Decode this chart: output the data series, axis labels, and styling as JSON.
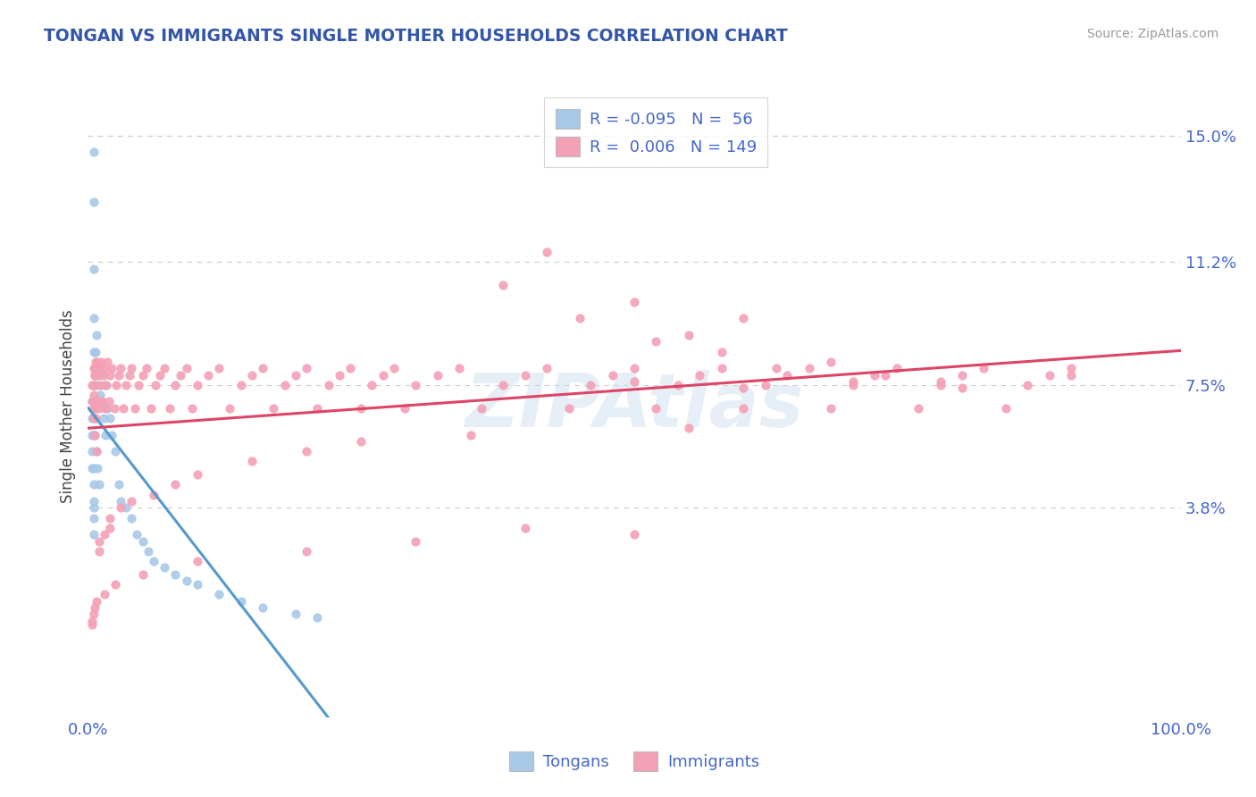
{
  "title": "TONGAN VS IMMIGRANTS SINGLE MOTHER HOUSEHOLDS CORRELATION CHART",
  "source": "Source: ZipAtlas.com",
  "ylabel": "Single Mother Households",
  "color_tongan": "#a8c8e8",
  "color_immigrant": "#f4a0b5",
  "color_tongan_line": "#5599cc",
  "color_immigrant_line": "#dd4466",
  "color_dashed": "#aaaaaa",
  "color_grid": "#cccccc",
  "color_title": "#3355aa",
  "color_axis_labels": "#4466cc",
  "color_source": "#999999",
  "xlim": [
    0.0,
    1.0
  ],
  "ylim": [
    -0.025,
    0.162
  ],
  "yticks": [
    0.038,
    0.075,
    0.112,
    0.15
  ],
  "ytick_labels": [
    "3.8%",
    "7.5%",
    "11.2%",
    "15.0%"
  ],
  "xtick_positions": [
    0.0,
    1.0
  ],
  "xtick_labels": [
    "0.0%",
    "100.0%"
  ],
  "R_tongan": -0.095,
  "N_tongan": 56,
  "R_immigrant": 0.006,
  "N_immigrant": 149,
  "tongan_x": [
    0.004,
    0.004,
    0.004,
    0.004,
    0.004,
    0.005,
    0.005,
    0.005,
    0.005,
    0.005,
    0.006,
    0.006,
    0.006,
    0.007,
    0.007,
    0.008,
    0.008,
    0.009,
    0.009,
    0.01,
    0.01,
    0.011,
    0.012,
    0.013,
    0.014,
    0.015,
    0.016,
    0.018,
    0.02,
    0.022,
    0.025,
    0.028,
    0.03,
    0.035,
    0.04,
    0.045,
    0.05,
    0.055,
    0.06,
    0.07,
    0.08,
    0.09,
    0.1,
    0.12,
    0.14,
    0.16,
    0.19,
    0.21,
    0.005,
    0.005,
    0.005,
    0.005,
    0.005,
    0.005,
    0.005,
    0.005
  ],
  "tongan_y": [
    0.07,
    0.065,
    0.06,
    0.055,
    0.05,
    0.145,
    0.13,
    0.11,
    0.095,
    0.085,
    0.08,
    0.07,
    0.06,
    0.085,
    0.068,
    0.09,
    0.055,
    0.075,
    0.05,
    0.08,
    0.045,
    0.072,
    0.078,
    0.07,
    0.065,
    0.075,
    0.06,
    0.068,
    0.065,
    0.06,
    0.055,
    0.045,
    0.04,
    0.038,
    0.035,
    0.03,
    0.028,
    0.025,
    0.022,
    0.02,
    0.018,
    0.016,
    0.015,
    0.012,
    0.01,
    0.008,
    0.006,
    0.005,
    0.04,
    0.035,
    0.03,
    0.045,
    0.038,
    0.075,
    0.06,
    0.05
  ],
  "immigrant_x": [
    0.004,
    0.004,
    0.005,
    0.005,
    0.005,
    0.006,
    0.006,
    0.007,
    0.007,
    0.008,
    0.008,
    0.009,
    0.01,
    0.01,
    0.011,
    0.012,
    0.013,
    0.014,
    0.015,
    0.016,
    0.017,
    0.018,
    0.019,
    0.02,
    0.022,
    0.024,
    0.026,
    0.028,
    0.03,
    0.032,
    0.035,
    0.038,
    0.04,
    0.043,
    0.046,
    0.05,
    0.054,
    0.058,
    0.062,
    0.066,
    0.07,
    0.075,
    0.08,
    0.085,
    0.09,
    0.095,
    0.1,
    0.11,
    0.12,
    0.13,
    0.14,
    0.15,
    0.16,
    0.17,
    0.18,
    0.19,
    0.2,
    0.21,
    0.22,
    0.23,
    0.24,
    0.25,
    0.26,
    0.27,
    0.28,
    0.29,
    0.3,
    0.32,
    0.34,
    0.36,
    0.38,
    0.4,
    0.42,
    0.44,
    0.46,
    0.48,
    0.5,
    0.52,
    0.54,
    0.56,
    0.58,
    0.6,
    0.62,
    0.64,
    0.66,
    0.68,
    0.7,
    0.72,
    0.74,
    0.76,
    0.78,
    0.8,
    0.82,
    0.84,
    0.86,
    0.88,
    0.9,
    0.42,
    0.5,
    0.55,
    0.6,
    0.38,
    0.45,
    0.52,
    0.58,
    0.63,
    0.68,
    0.73,
    0.78,
    0.55,
    0.35,
    0.25,
    0.2,
    0.15,
    0.1,
    0.08,
    0.06,
    0.04,
    0.03,
    0.02,
    0.02,
    0.015,
    0.01,
    0.01,
    0.5,
    0.6,
    0.7,
    0.8,
    0.9,
    0.5,
    0.4,
    0.3,
    0.2,
    0.1,
    0.05,
    0.025,
    0.015,
    0.008,
    0.006,
    0.005,
    0.004,
    0.004,
    0.005,
    0.005,
    0.005,
    0.006,
    0.006,
    0.007,
    0.009
  ],
  "immigrant_y": [
    0.075,
    0.07,
    0.08,
    0.075,
    0.068,
    0.078,
    0.06,
    0.08,
    0.065,
    0.082,
    0.055,
    0.078,
    0.08,
    0.068,
    0.075,
    0.082,
    0.07,
    0.078,
    0.08,
    0.068,
    0.075,
    0.082,
    0.07,
    0.078,
    0.08,
    0.068,
    0.075,
    0.078,
    0.08,
    0.068,
    0.075,
    0.078,
    0.08,
    0.068,
    0.075,
    0.078,
    0.08,
    0.068,
    0.075,
    0.078,
    0.08,
    0.068,
    0.075,
    0.078,
    0.08,
    0.068,
    0.075,
    0.078,
    0.08,
    0.068,
    0.075,
    0.078,
    0.08,
    0.068,
    0.075,
    0.078,
    0.08,
    0.068,
    0.075,
    0.078,
    0.08,
    0.068,
    0.075,
    0.078,
    0.08,
    0.068,
    0.075,
    0.078,
    0.08,
    0.068,
    0.075,
    0.078,
    0.08,
    0.068,
    0.075,
    0.078,
    0.08,
    0.068,
    0.075,
    0.078,
    0.08,
    0.068,
    0.075,
    0.078,
    0.08,
    0.068,
    0.075,
    0.078,
    0.08,
    0.068,
    0.075,
    0.078,
    0.08,
    0.068,
    0.075,
    0.078,
    0.08,
    0.115,
    0.1,
    0.09,
    0.095,
    0.105,
    0.095,
    0.088,
    0.085,
    0.08,
    0.082,
    0.078,
    0.076,
    0.062,
    0.06,
    0.058,
    0.055,
    0.052,
    0.048,
    0.045,
    0.042,
    0.04,
    0.038,
    0.035,
    0.032,
    0.03,
    0.028,
    0.025,
    0.076,
    0.074,
    0.076,
    0.074,
    0.078,
    0.03,
    0.032,
    0.028,
    0.025,
    0.022,
    0.018,
    0.015,
    0.012,
    0.01,
    0.008,
    0.006,
    0.004,
    0.003,
    0.072,
    0.068,
    0.065,
    0.078,
    0.08,
    0.082,
    0.07
  ]
}
